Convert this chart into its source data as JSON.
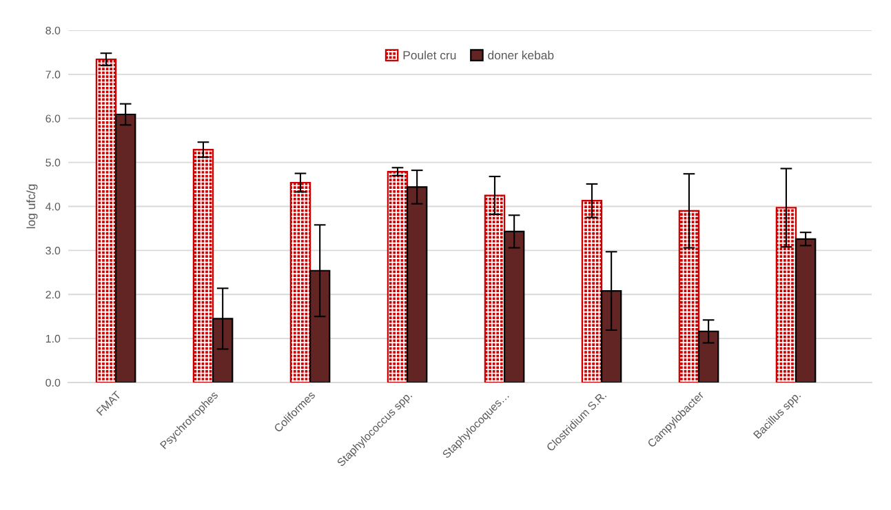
{
  "chart_data": {
    "type": "bar",
    "ylabel": "log ufc/g",
    "categories": [
      "FMAT",
      "Psychrotrophes",
      "Coliformes",
      "Staphylococcus spp.",
      "Staphylocoques…",
      "Clostridium S.R.",
      "Campylobacter",
      "Bacillus spp."
    ],
    "series": [
      {
        "name": "Poulet cru",
        "color": "#cc0000",
        "values": [
          7.34,
          5.29,
          4.54,
          4.79,
          4.25,
          4.13,
          3.9,
          3.97
        ],
        "errors": [
          0.14,
          0.17,
          0.21,
          0.09,
          0.43,
          0.38,
          0.84,
          0.89
        ]
      },
      {
        "name": "doner kebab",
        "color": "#632523",
        "values": [
          6.09,
          1.45,
          2.54,
          4.44,
          3.43,
          2.08,
          1.16,
          3.26
        ],
        "errors": [
          0.24,
          0.69,
          1.04,
          0.38,
          0.37,
          0.89,
          0.26,
          0.15
        ]
      }
    ],
    "ylim": [
      0,
      8
    ],
    "yticks": [
      {
        "value": 0,
        "label": "0.0"
      },
      {
        "value": 1,
        "label": "1.0"
      },
      {
        "value": 2,
        "label": "2.0"
      },
      {
        "value": 3,
        "label": "3.0"
      },
      {
        "value": 4,
        "label": "4.0"
      },
      {
        "value": 5,
        "label": "5.0"
      },
      {
        "value": 6,
        "label": "6.0"
      },
      {
        "value": 7,
        "label": "7.0"
      },
      {
        "value": 8,
        "label": "8.0"
      }
    ],
    "grid": "y",
    "legend": "top"
  }
}
